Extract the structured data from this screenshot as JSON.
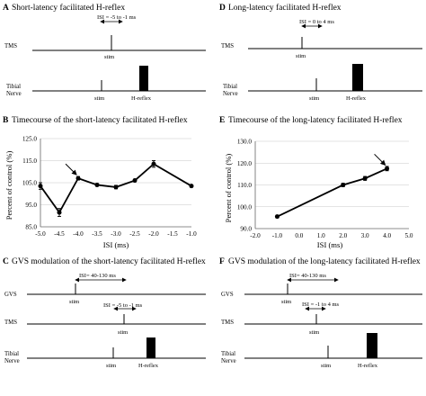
{
  "panels": {
    "A": {
      "letter": "A",
      "title": "Short-latency facilitated H-reflex",
      "isi_label": "ISI = -5 to -1 ms",
      "tms_label": "TMS",
      "stim_label_tms": "stim",
      "tibial_label_1": "Tibial",
      "tibial_label_2": "Nerve",
      "stim_label_tibial": "stim",
      "hreflex_label": "H-reflex"
    },
    "B": {
      "letter": "B",
      "title": "Timecourse of the short-latency facilitated H-reflex",
      "ylabel": "Percent of control (%)",
      "xlabel": "ISI (ms)"
    },
    "C": {
      "letter": "C",
      "title": "GVS modulation of the short-latency facilitated H-reflex",
      "gvs_label": "GVS",
      "isi_gvs_label": "ISI= 40-130 ms",
      "stim_label_gvs": "stim",
      "tms_label": "TMS",
      "isi_tms_label": "ISI = -5 to -1 ms",
      "stim_label_tms": "stim",
      "tibial_label_1": "Tibial",
      "tibial_label_2": "Nerve",
      "stim_label_tibial": "stim",
      "hreflex_label": "H-reflex"
    },
    "D": {
      "letter": "D",
      "title": "Long-latency facilitated H-reflex",
      "isi_label": "ISI = 0 to 4 ms",
      "tms_label": "TMS",
      "stim_label_tms": "stim",
      "tibial_label_1": "Tibial",
      "tibial_label_2": "Nerve",
      "stim_label_tibial": "stim",
      "hreflex_label": "H-reflex"
    },
    "E": {
      "letter": "E",
      "title": "Timecourse of the long-latency facilitated H-reflex",
      "ylabel": "Percent of control (%)",
      "xlabel": "ISI (ms)"
    },
    "F": {
      "letter": "F",
      "title": "GVS modulation of the long-latency facilitated H-reflex",
      "gvs_label": "GVS",
      "isi_gvs_label": "ISI= 40-130 ms",
      "stim_label_gvs": "stim",
      "tms_label": "TMS",
      "isi_tms_label": "ISI = -1 to 4 ms",
      "stim_label_tms": "stim",
      "tibial_label_1": "Tibial",
      "tibial_label_2": "Nerve",
      "stim_label_tibial": "stim",
      "hreflex_label": "H-reflex"
    }
  },
  "chart_data": [
    {
      "panel": "B",
      "type": "line",
      "x": [
        -5.0,
        -4.5,
        -4.0,
        -3.5,
        -3.0,
        -2.5,
        -2.0,
        -1.0
      ],
      "y": [
        103.5,
        91.5,
        107.0,
        104.0,
        103.0,
        106.0,
        113.5,
        103.5
      ],
      "yerr": [
        1.5,
        1.8,
        0.8,
        0.6,
        0.8,
        0.6,
        1.5,
        0.5
      ],
      "xlim": [
        -5.0,
        -1.0
      ],
      "ylim": [
        85.0,
        125.0
      ],
      "xticks": [
        "-5.0",
        "-4.5",
        "-4.0",
        "-3.5",
        "-3.0",
        "-2.5",
        "-2.0",
        "-1.5",
        "-1.0"
      ],
      "yticks": [
        "85.0",
        "95.0",
        "105.0",
        "115.0",
        "125.0"
      ],
      "annotation": "arrow",
      "annotation_target": [
        -4.0,
        107.0
      ]
    },
    {
      "panel": "E",
      "type": "line",
      "x": [
        -1.0,
        2.0,
        3.0,
        4.0
      ],
      "y": [
        95.5,
        110.0,
        113.0,
        117.5
      ],
      "yerr": [
        0.6,
        0.8,
        0.9,
        1.0
      ],
      "xlim": [
        -2.0,
        5.0
      ],
      "ylim": [
        90.0,
        130.0
      ],
      "xticks": [
        "-2.0",
        "-1.0",
        "0.0",
        "1.0",
        "2.0",
        "3.0",
        "4.0",
        "5.0"
      ],
      "yticks": [
        "90.0",
        "100.0",
        "110.0",
        "120.0",
        "130.0"
      ],
      "annotation": "arrow",
      "annotation_target": [
        4.0,
        117.5
      ]
    }
  ]
}
